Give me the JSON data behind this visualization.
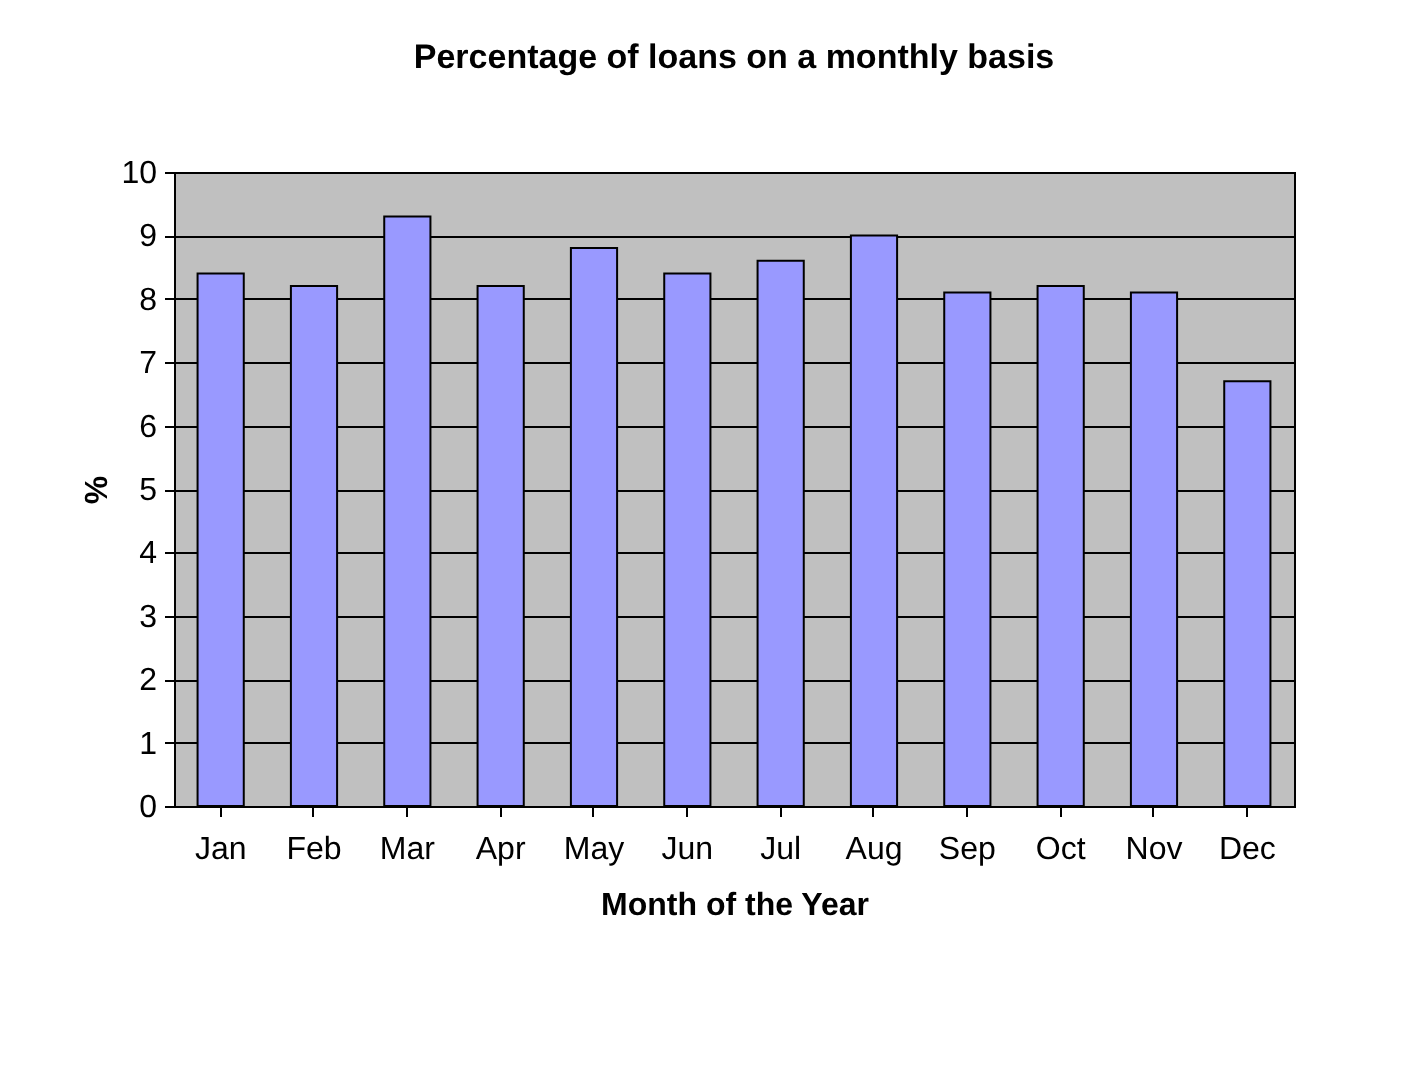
{
  "chart_data": {
    "type": "bar",
    "title": "Percentage of loans on a monthly basis",
    "xlabel": "Month of the Year",
    "ylabel": "%",
    "categories": [
      "Jan",
      "Feb",
      "Mar",
      "Apr",
      "May",
      "Jun",
      "Jul",
      "Aug",
      "Sep",
      "Oct",
      "Nov",
      "Dec"
    ],
    "values": [
      8.4,
      8.2,
      9.3,
      8.2,
      8.8,
      8.4,
      8.6,
      9.0,
      8.1,
      8.2,
      8.1,
      6.7
    ],
    "color": "#9999ff",
    "ylim": [
      0,
      10
    ],
    "yticks": [
      0,
      1,
      2,
      3,
      4,
      5,
      6,
      7,
      8,
      9,
      10
    ],
    "grid": "y"
  }
}
